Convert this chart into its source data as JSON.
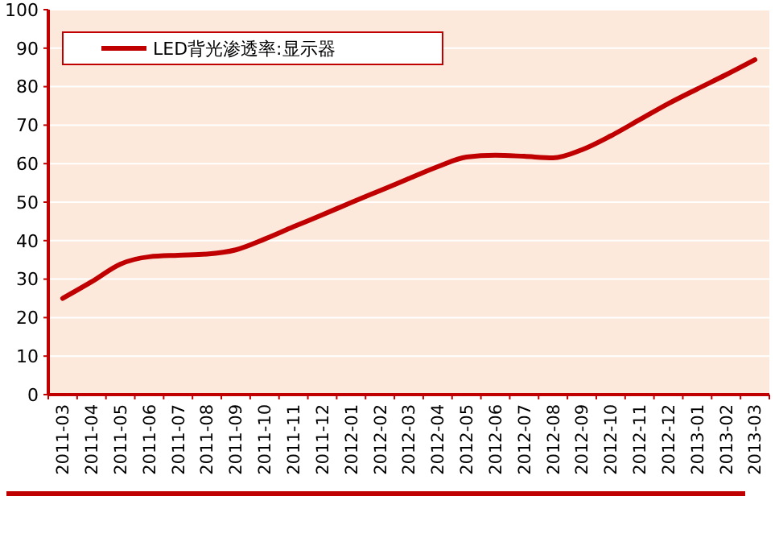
{
  "chart_data": {
    "type": "line",
    "categories": [
      "2011-03",
      "2011-04",
      "2011-05",
      "2011-06",
      "2011-07",
      "2011-08",
      "2011-09",
      "2011-10",
      "2011-11",
      "2011-12",
      "2012-01",
      "2012-02",
      "2012-03",
      "2012-04",
      "2012-05",
      "2012-06",
      "2012-07",
      "2012-08",
      "2012-09",
      "2012-10",
      "2012-11",
      "2012-12",
      "2013-01",
      "2013-02",
      "2013-03"
    ],
    "series": [
      {
        "name": "LED背光渗透率:显示器",
        "color": "#c00000",
        "values": [
          25,
          29.3,
          33.9,
          35.8,
          36.2,
          36.5,
          37.6,
          40.4,
          43.6,
          46.7,
          49.9,
          53,
          56.1,
          59.2,
          61.7,
          62.2,
          61.9,
          61.5,
          63.6,
          67.2,
          71.4,
          75.6,
          79.4,
          83.1,
          87
        ]
      }
    ],
    "ylim": [
      0,
      100
    ],
    "yticks": [
      0,
      10,
      20,
      30,
      40,
      50,
      60,
      70,
      80,
      90,
      100
    ],
    "grid": "y",
    "legend": "top left",
    "marker": "none",
    "line_style": "solid"
  }
}
